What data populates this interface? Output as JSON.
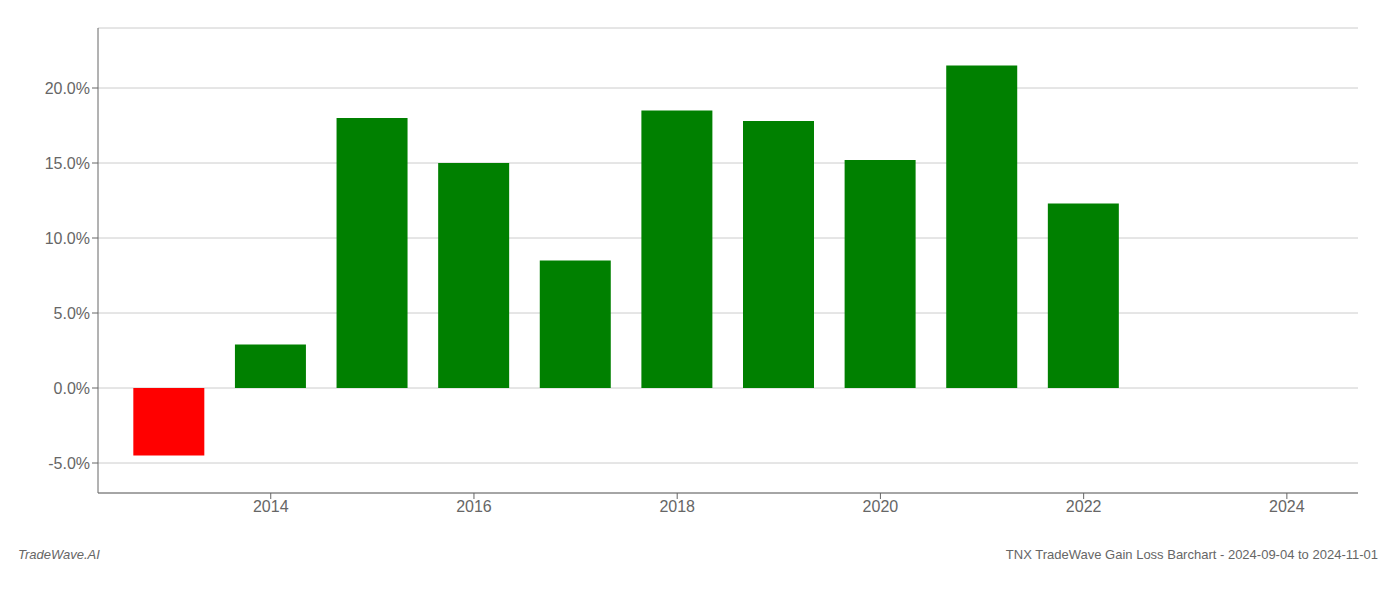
{
  "chart_data": {
    "type": "bar",
    "x": [
      2013,
      2014,
      2015,
      2016,
      2017,
      2018,
      2019,
      2020,
      2021,
      2022
    ],
    "values": [
      -4.5,
      2.9,
      18.0,
      15.0,
      8.5,
      18.5,
      17.8,
      15.2,
      21.5,
      12.3
    ],
    "colors": [
      "#ff0000",
      "#008000",
      "#008000",
      "#008000",
      "#008000",
      "#008000",
      "#008000",
      "#008000",
      "#008000",
      "#008000"
    ],
    "xlim": [
      2012.3,
      2024.7
    ],
    "xticks": [
      2014,
      2016,
      2018,
      2020,
      2022,
      2024
    ],
    "ylim": [
      -7.0,
      24.0
    ],
    "yticks": [
      {
        "value": -5.0,
        "label": "-5.0%"
      },
      {
        "value": 0.0,
        "label": "0.0%"
      },
      {
        "value": 5.0,
        "label": "5.0%"
      },
      {
        "value": 10.0,
        "label": "10.0%"
      },
      {
        "value": 15.0,
        "label": "15.0%"
      },
      {
        "value": 20.0,
        "label": "20.0%"
      }
    ],
    "grid": true,
    "annotations": [
      "TradeWave.AI",
      "TNX TradeWave Gain Loss Barchart - 2024-09-04 to 2024-11-01"
    ]
  }
}
